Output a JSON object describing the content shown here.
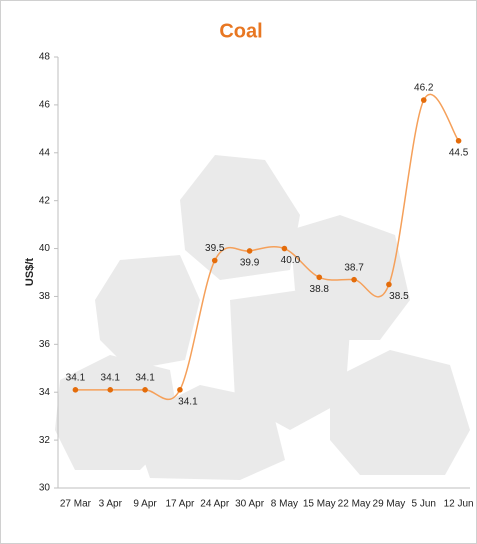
{
  "chart_data": {
    "type": "line",
    "title": "Coal",
    "y_label": "US$/t",
    "categories": [
      "27 Mar",
      "3 Apr",
      "9 Apr",
      "17 Apr",
      "24 Apr",
      "30 Apr",
      "8 May",
      "15 May",
      "22 May",
      "29 May",
      "5 Jun",
      "12 Jun"
    ],
    "series": [
      {
        "name": "Coal",
        "color": "#f5a05a",
        "marker_color": "#e46c0a",
        "values": [
          34.1,
          34.1,
          34.1,
          34.1,
          39.5,
          39.9,
          40.0,
          38.8,
          38.7,
          38.5,
          46.2,
          44.5
        ],
        "value_labels": [
          "34.1",
          "34.1",
          "34.1",
          "34.1",
          "39.5",
          "39.9",
          "40.0",
          "38.8",
          "38.7",
          "38.5",
          "46.2",
          "44.5"
        ]
      }
    ],
    "ylim": [
      30,
      48
    ],
    "yticks": [
      30,
      32,
      34,
      36,
      38,
      40,
      42,
      44,
      46,
      48
    ],
    "smooth": true
  }
}
